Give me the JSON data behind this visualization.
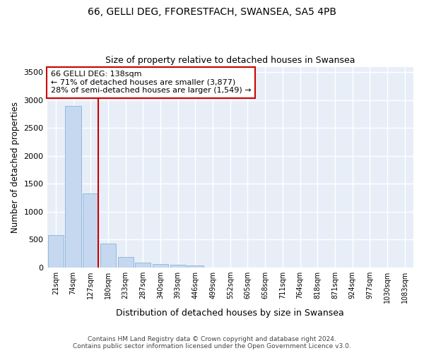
{
  "title": "66, GELLI DEG, FFORESTFACH, SWANSEA, SA5 4PB",
  "subtitle": "Size of property relative to detached houses in Swansea",
  "xlabel": "Distribution of detached houses by size in Swansea",
  "ylabel": "Number of detached properties",
  "categories": [
    "21sqm",
    "74sqm",
    "127sqm",
    "180sqm",
    "233sqm",
    "287sqm",
    "340sqm",
    "393sqm",
    "446sqm",
    "499sqm",
    "552sqm",
    "605sqm",
    "658sqm",
    "711sqm",
    "764sqm",
    "818sqm",
    "871sqm",
    "924sqm",
    "977sqm",
    "1030sqm",
    "1083sqm"
  ],
  "values": [
    580,
    2900,
    1320,
    420,
    185,
    80,
    55,
    45,
    35,
    0,
    0,
    0,
    0,
    0,
    0,
    0,
    0,
    0,
    0,
    0,
    0
  ],
  "bar_color": "#c5d8f0",
  "bar_edge_color": "#8ab4d8",
  "background_color": "#e8eef8",
  "grid_color": "#ffffff",
  "ylim": [
    0,
    3600
  ],
  "yticks": [
    0,
    500,
    1000,
    1500,
    2000,
    2500,
    3000,
    3500
  ],
  "red_line_x": 2.45,
  "annotation_text": "66 GELLI DEG: 138sqm\n← 71% of detached houses are smaller (3,877)\n28% of semi-detached houses are larger (1,549) →",
  "annotation_box_color": "#ffffff",
  "annotation_border_color": "#cc0000",
  "footer_line1": "Contains HM Land Registry data © Crown copyright and database right 2024.",
  "footer_line2": "Contains public sector information licensed under the Open Government Licence v3.0."
}
